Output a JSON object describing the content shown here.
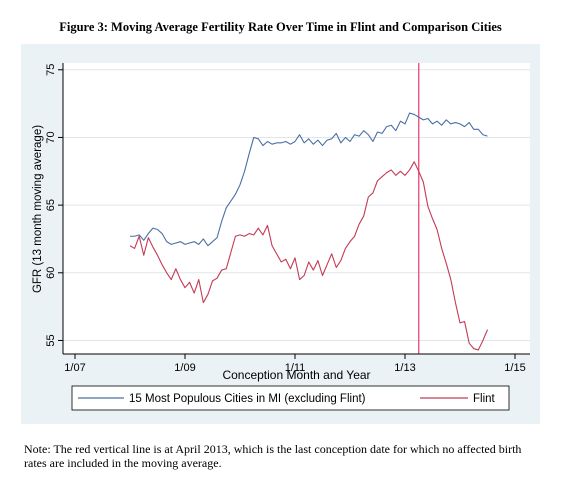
{
  "title": "Figure 3: Moving Average Fertility Rate Over Time in Flint and Comparison Cities",
  "note": "Note: The red vertical line is at April 2013, which is the last conception date for which no affected birth rates are included in the moving average.",
  "chart_data": {
    "type": "line",
    "xlabel": "Conception Month and Year",
    "ylabel": "GFR (13 month moving average)",
    "x_ticks": [
      {
        "label": "1/07",
        "date": "2007-01"
      },
      {
        "label": "1/09",
        "date": "2009-01"
      },
      {
        "label": "1/11",
        "date": "2011-01"
      },
      {
        "label": "1/13",
        "date": "2013-01"
      },
      {
        "label": "1/15",
        "date": "2015-01"
      }
    ],
    "y_ticks": [
      55,
      60,
      65,
      70,
      75
    ],
    "ylim": [
      54,
      75.5
    ],
    "xlim": [
      "2007-01",
      "2015-01"
    ],
    "grid": "horizontal",
    "vline": {
      "date": "2013-04",
      "color": "#e8477a"
    },
    "legend_position": "bottom",
    "series": [
      {
        "name": "15 Most Populous Cities in MI (excluding Flint)",
        "color": "#4a6fa5",
        "points": [
          [
            "2008-01",
            62.7
          ],
          [
            "2008-02",
            62.7
          ],
          [
            "2008-03",
            62.8
          ],
          [
            "2008-04",
            62.4
          ],
          [
            "2008-05",
            62.9
          ],
          [
            "2008-06",
            63.3
          ],
          [
            "2008-07",
            63.2
          ],
          [
            "2008-08",
            62.9
          ],
          [
            "2008-09",
            62.3
          ],
          [
            "2008-10",
            62.1
          ],
          [
            "2008-11",
            62.2
          ],
          [
            "2008-12",
            62.3
          ],
          [
            "2009-01",
            62.1
          ],
          [
            "2009-02",
            62.2
          ],
          [
            "2009-03",
            62.3
          ],
          [
            "2009-04",
            62.1
          ],
          [
            "2009-05",
            62.5
          ],
          [
            "2009-06",
            62.0
          ],
          [
            "2009-07",
            62.3
          ],
          [
            "2009-08",
            62.6
          ],
          [
            "2009-09",
            63.8
          ],
          [
            "2009-10",
            64.8
          ],
          [
            "2009-11",
            65.3
          ],
          [
            "2009-12",
            65.8
          ],
          [
            "2010-01",
            66.5
          ],
          [
            "2010-02",
            67.5
          ],
          [
            "2010-03",
            68.8
          ],
          [
            "2010-04",
            70.0
          ],
          [
            "2010-05",
            69.9
          ],
          [
            "2010-06",
            69.4
          ],
          [
            "2010-07",
            69.7
          ],
          [
            "2010-08",
            69.5
          ],
          [
            "2010-09",
            69.6
          ],
          [
            "2010-10",
            69.6
          ],
          [
            "2010-11",
            69.7
          ],
          [
            "2010-12",
            69.5
          ],
          [
            "2011-01",
            69.7
          ],
          [
            "2011-02",
            70.2
          ],
          [
            "2011-03",
            69.6
          ],
          [
            "2011-04",
            69.9
          ],
          [
            "2011-05",
            69.5
          ],
          [
            "2011-06",
            69.8
          ],
          [
            "2011-07",
            69.4
          ],
          [
            "2011-08",
            69.8
          ],
          [
            "2011-09",
            69.9
          ],
          [
            "2011-10",
            70.3
          ],
          [
            "2011-11",
            69.6
          ],
          [
            "2011-12",
            70.0
          ],
          [
            "2012-01",
            69.7
          ],
          [
            "2012-02",
            70.2
          ],
          [
            "2012-03",
            70.1
          ],
          [
            "2012-04",
            70.5
          ],
          [
            "2012-05",
            70.2
          ],
          [
            "2012-06",
            69.7
          ],
          [
            "2012-07",
            70.4
          ],
          [
            "2012-08",
            70.3
          ],
          [
            "2012-09",
            70.8
          ],
          [
            "2012-10",
            70.9
          ],
          [
            "2012-11",
            70.5
          ],
          [
            "2012-12",
            71.2
          ],
          [
            "2013-01",
            71.0
          ],
          [
            "2013-02",
            71.8
          ],
          [
            "2013-03",
            71.7
          ],
          [
            "2013-04",
            71.5
          ],
          [
            "2013-05",
            71.3
          ],
          [
            "2013-06",
            71.4
          ],
          [
            "2013-07",
            71.0
          ],
          [
            "2013-08",
            71.2
          ],
          [
            "2013-09",
            70.9
          ],
          [
            "2013-10",
            71.3
          ],
          [
            "2013-11",
            71.0
          ],
          [
            "2013-12",
            71.1
          ],
          [
            "2014-01",
            71.0
          ],
          [
            "2014-02",
            70.8
          ],
          [
            "2014-03",
            71.1
          ],
          [
            "2014-04",
            70.6
          ],
          [
            "2014-05",
            70.6
          ],
          [
            "2014-06",
            70.2
          ],
          [
            "2014-07",
            70.1
          ]
        ]
      },
      {
        "name": "Flint",
        "color": "#c43a55",
        "points": [
          [
            "2008-01",
            62.0
          ],
          [
            "2008-02",
            61.8
          ],
          [
            "2008-03",
            62.7
          ],
          [
            "2008-04",
            61.3
          ],
          [
            "2008-05",
            62.6
          ],
          [
            "2008-06",
            61.9
          ],
          [
            "2008-07",
            61.3
          ],
          [
            "2008-08",
            60.6
          ],
          [
            "2008-09",
            60.0
          ],
          [
            "2008-10",
            59.5
          ],
          [
            "2008-11",
            60.3
          ],
          [
            "2008-12",
            59.5
          ],
          [
            "2009-01",
            58.9
          ],
          [
            "2009-02",
            59.3
          ],
          [
            "2009-03",
            58.5
          ],
          [
            "2009-04",
            59.5
          ],
          [
            "2009-05",
            57.8
          ],
          [
            "2009-06",
            58.4
          ],
          [
            "2009-07",
            59.4
          ],
          [
            "2009-08",
            59.6
          ],
          [
            "2009-09",
            60.2
          ],
          [
            "2009-10",
            60.3
          ],
          [
            "2009-11",
            61.5
          ],
          [
            "2009-12",
            62.7
          ],
          [
            "2010-01",
            62.8
          ],
          [
            "2010-02",
            62.7
          ],
          [
            "2010-03",
            62.9
          ],
          [
            "2010-04",
            62.8
          ],
          [
            "2010-05",
            63.3
          ],
          [
            "2010-06",
            62.8
          ],
          [
            "2010-07",
            63.5
          ],
          [
            "2010-08",
            62.0
          ],
          [
            "2010-09",
            61.4
          ],
          [
            "2010-10",
            60.8
          ],
          [
            "2010-11",
            61.0
          ],
          [
            "2010-12",
            60.3
          ],
          [
            "2011-01",
            61.1
          ],
          [
            "2011-02",
            59.5
          ],
          [
            "2011-03",
            59.8
          ],
          [
            "2011-04",
            60.8
          ],
          [
            "2011-05",
            60.2
          ],
          [
            "2011-06",
            60.9
          ],
          [
            "2011-07",
            59.8
          ],
          [
            "2011-08",
            60.6
          ],
          [
            "2011-09",
            61.4
          ],
          [
            "2011-10",
            60.4
          ],
          [
            "2011-11",
            60.9
          ],
          [
            "2011-12",
            61.8
          ],
          [
            "2012-01",
            62.3
          ],
          [
            "2012-02",
            62.7
          ],
          [
            "2012-03",
            63.6
          ],
          [
            "2012-04",
            64.2
          ],
          [
            "2012-05",
            65.6
          ],
          [
            "2012-06",
            65.9
          ],
          [
            "2012-07",
            66.8
          ],
          [
            "2012-08",
            67.1
          ],
          [
            "2012-09",
            67.4
          ],
          [
            "2012-10",
            67.6
          ],
          [
            "2012-11",
            67.2
          ],
          [
            "2012-12",
            67.5
          ],
          [
            "2013-01",
            67.2
          ],
          [
            "2013-02",
            67.6
          ],
          [
            "2013-03",
            68.2
          ],
          [
            "2013-04",
            67.5
          ],
          [
            "2013-05",
            66.7
          ],
          [
            "2013-06",
            64.9
          ],
          [
            "2013-07",
            64.0
          ],
          [
            "2013-08",
            63.2
          ],
          [
            "2013-09",
            61.8
          ],
          [
            "2013-10",
            60.7
          ],
          [
            "2013-11",
            59.5
          ],
          [
            "2013-12",
            57.8
          ],
          [
            "2014-01",
            56.3
          ],
          [
            "2014-02",
            56.4
          ],
          [
            "2014-03",
            54.8
          ],
          [
            "2014-04",
            54.4
          ],
          [
            "2014-05",
            54.3
          ],
          [
            "2014-06",
            55.0
          ],
          [
            "2014-07",
            55.8
          ]
        ]
      }
    ]
  }
}
